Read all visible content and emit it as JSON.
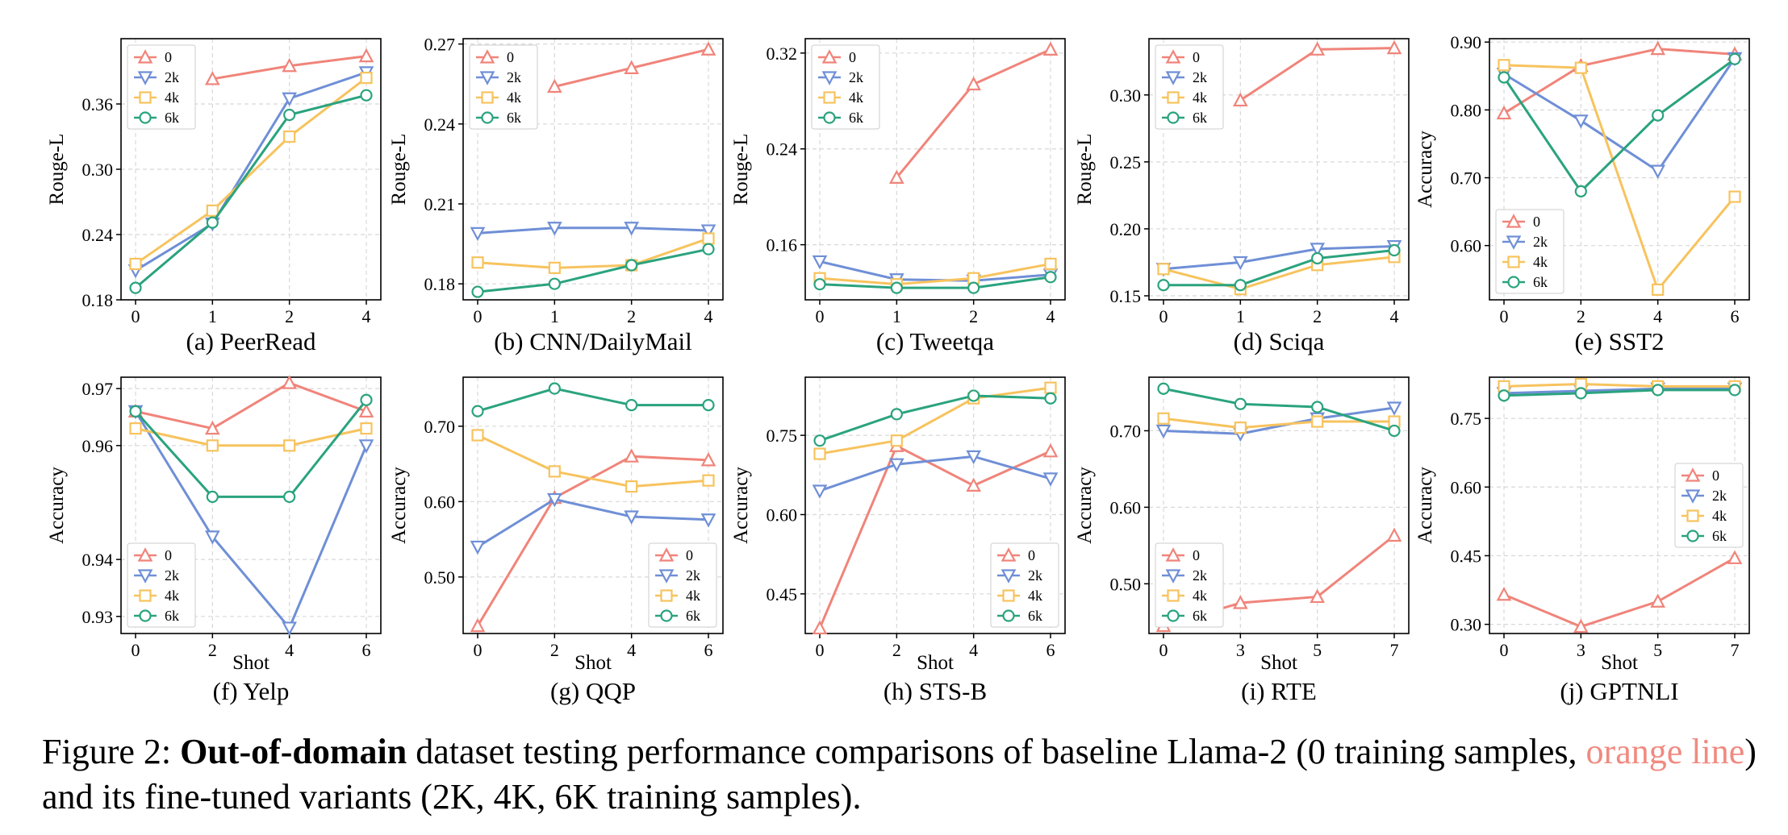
{
  "series_colors": {
    "0": "#f0847a",
    "2k": "#6f8fd6",
    "4k": "#f7c35e",
    "6k": "#2aa37e"
  },
  "series_markers": {
    "0": "triangle-up",
    "2k": "triangle-down",
    "4k": "square",
    "6k": "circle"
  },
  "chart_data": [
    {
      "type": "line",
      "title": "(a) PeerRead",
      "ylabel": "Rouge-L",
      "xlabel": "",
      "x": [
        0,
        1,
        2,
        4
      ],
      "xticks": [
        "0",
        "1",
        "2",
        "4"
      ],
      "yticks": [
        "0.18",
        "0.24",
        "0.30",
        "0.36"
      ],
      "ylim": [
        0.18,
        0.42
      ],
      "legend": "top-left",
      "series": [
        {
          "name": "0",
          "values": [
            null,
            0.383,
            0.395,
            0.404
          ]
        },
        {
          "name": "2k",
          "values": [
            0.207,
            0.25,
            0.365,
            0.389
          ]
        },
        {
          "name": "4k",
          "values": [
            0.213,
            0.262,
            0.33,
            0.384
          ]
        },
        {
          "name": "6k",
          "values": [
            0.191,
            0.251,
            0.35,
            0.368
          ]
        }
      ]
    },
    {
      "type": "line",
      "title": "(b) CNN/DailyMail",
      "ylabel": "Rouge-L",
      "xlabel": "",
      "x": [
        0,
        1,
        2,
        4
      ],
      "xticks": [
        "0",
        "1",
        "2",
        "4"
      ],
      "yticks": [
        "0.18",
        "0.21",
        "0.24",
        "0.27"
      ],
      "ylim": [
        0.174,
        0.272
      ],
      "legend": "top-left",
      "series": [
        {
          "name": "0",
          "values": [
            null,
            0.254,
            0.261,
            0.268
          ]
        },
        {
          "name": "2k",
          "values": [
            0.199,
            0.201,
            0.201,
            0.2
          ]
        },
        {
          "name": "4k",
          "values": [
            0.188,
            0.186,
            0.187,
            0.197
          ]
        },
        {
          "name": "6k",
          "values": [
            0.177,
            0.18,
            0.187,
            0.193
          ]
        }
      ]
    },
    {
      "type": "line",
      "title": "(c) Tweetqa",
      "ylabel": "Rouge-L",
      "xlabel": "",
      "x": [
        0,
        1,
        2,
        4
      ],
      "xticks": [
        "0",
        "1",
        "2",
        "4"
      ],
      "yticks": [
        "0.16",
        "0.24",
        "0.32"
      ],
      "ylim": [
        0.114,
        0.332
      ],
      "legend": "top-left",
      "series": [
        {
          "name": "0",
          "values": [
            null,
            0.216,
            0.294,
            0.323
          ]
        },
        {
          "name": "2k",
          "values": [
            0.146,
            0.131,
            0.13,
            0.135
          ]
        },
        {
          "name": "4k",
          "values": [
            0.132,
            0.127,
            0.132,
            0.144
          ]
        },
        {
          "name": "6k",
          "values": [
            0.127,
            0.124,
            0.124,
            0.133
          ]
        }
      ]
    },
    {
      "type": "line",
      "title": "(d) Sciqa",
      "ylabel": "Rouge-L",
      "xlabel": "",
      "x": [
        0,
        1,
        2,
        4
      ],
      "xticks": [
        "0",
        "1",
        "2",
        "4"
      ],
      "yticks": [
        "0.15",
        "0.20",
        "0.25",
        "0.30"
      ],
      "ylim": [
        0.147,
        0.342
      ],
      "legend": "top-left",
      "series": [
        {
          "name": "0",
          "values": [
            null,
            0.296,
            0.334,
            0.335
          ]
        },
        {
          "name": "2k",
          "values": [
            0.17,
            0.175,
            0.185,
            0.187
          ]
        },
        {
          "name": "4k",
          "values": [
            0.17,
            0.155,
            0.173,
            0.179
          ]
        },
        {
          "name": "6k",
          "values": [
            0.158,
            0.158,
            0.178,
            0.184
          ]
        }
      ]
    },
    {
      "type": "line",
      "title": "(e) SST2",
      "ylabel": "Accuracy",
      "xlabel": "",
      "x": [
        0,
        2,
        4,
        6
      ],
      "xticks": [
        "0",
        "2",
        "4",
        "6"
      ],
      "yticks": [
        "0.60",
        "0.70",
        "0.80",
        "0.90"
      ],
      "ylim": [
        0.52,
        0.905
      ],
      "legend": "bottom-left",
      "series": [
        {
          "name": "0",
          "values": [
            0.795,
            0.865,
            0.89,
            0.882
          ]
        },
        {
          "name": "2k",
          "values": [
            0.853,
            0.784,
            0.71,
            0.876
          ]
        },
        {
          "name": "4k",
          "values": [
            0.866,
            0.862,
            0.535,
            0.672
          ]
        },
        {
          "name": "6k",
          "values": [
            0.848,
            0.68,
            0.792,
            0.875
          ]
        }
      ]
    },
    {
      "type": "line",
      "title": "(f) Yelp",
      "ylabel": "Accuracy",
      "xlabel": "Shot",
      "x": [
        0,
        2,
        4,
        6
      ],
      "xticks": [
        "0",
        "2",
        "4",
        "6"
      ],
      "yticks": [
        "0.93",
        "0.94",
        "0.96",
        "0.97"
      ],
      "ylim": [
        0.927,
        0.972
      ],
      "legend": "bottom-left",
      "series": [
        {
          "name": "0",
          "values": [
            0.966,
            0.963,
            0.971,
            0.966
          ]
        },
        {
          "name": "2k",
          "values": [
            0.966,
            0.944,
            0.928,
            0.96
          ]
        },
        {
          "name": "4k",
          "values": [
            0.963,
            0.96,
            0.96,
            0.963
          ]
        },
        {
          "name": "6k",
          "values": [
            0.966,
            0.951,
            0.951,
            0.968
          ]
        }
      ]
    },
    {
      "type": "line",
      "title": "(g) QQP",
      "ylabel": "Accuracy",
      "xlabel": "Shot",
      "x": [
        0,
        2,
        4,
        6
      ],
      "xticks": [
        "0",
        "2",
        "4",
        "6"
      ],
      "yticks": [
        "0.50",
        "0.60",
        "0.70"
      ],
      "ylim": [
        0.425,
        0.765
      ],
      "legend": "bottom-right",
      "series": [
        {
          "name": "0",
          "values": [
            0.435,
            0.605,
            0.66,
            0.655
          ]
        },
        {
          "name": "2k",
          "values": [
            0.54,
            0.603,
            0.58,
            0.576
          ]
        },
        {
          "name": "4k",
          "values": [
            0.688,
            0.64,
            0.62,
            0.628
          ]
        },
        {
          "name": "6k",
          "values": [
            0.72,
            0.75,
            0.728,
            0.728
          ]
        }
      ]
    },
    {
      "type": "line",
      "title": "(h) STS-B",
      "ylabel": "Accuracy",
      "xlabel": "Shot",
      "x": [
        0,
        2,
        4,
        6
      ],
      "xticks": [
        "0",
        "2",
        "4",
        "6"
      ],
      "yticks": [
        "0.45",
        "0.60",
        "0.75"
      ],
      "ylim": [
        0.375,
        0.86
      ],
      "legend": "bottom-right",
      "series": [
        {
          "name": "0",
          "values": [
            0.385,
            0.73,
            0.655,
            0.72
          ]
        },
        {
          "name": "2k",
          "values": [
            0.645,
            0.695,
            0.71,
            0.668
          ]
        },
        {
          "name": "4k",
          "values": [
            0.715,
            0.74,
            0.82,
            0.84
          ]
        },
        {
          "name": "6k",
          "values": [
            0.74,
            0.79,
            0.825,
            0.82
          ]
        }
      ]
    },
    {
      "type": "line",
      "title": "(i) RTE",
      "ylabel": "Accuracy",
      "xlabel": "Shot",
      "x": [
        0,
        3,
        5,
        7
      ],
      "xticks": [
        "0",
        "3",
        "5",
        "7"
      ],
      "yticks": [
        "0.50",
        "0.60",
        "0.70"
      ],
      "ylim": [
        0.435,
        0.77
      ],
      "legend": "bottom-left",
      "series": [
        {
          "name": "0",
          "values": [
            0.445,
            0.475,
            0.483,
            0.563
          ]
        },
        {
          "name": "2k",
          "values": [
            0.7,
            0.696,
            0.716,
            0.73
          ]
        },
        {
          "name": "4k",
          "values": [
            0.716,
            0.704,
            0.712,
            0.712
          ]
        },
        {
          "name": "6k",
          "values": [
            0.755,
            0.735,
            0.731,
            0.7
          ]
        }
      ]
    },
    {
      "type": "line",
      "title": "(j) GPTNLI",
      "ylabel": "Accuracy",
      "xlabel": "Shot",
      "x": [
        0,
        3,
        5,
        7
      ],
      "xticks": [
        "0",
        "3",
        "5",
        "7"
      ],
      "yticks": [
        "0.30",
        "0.45",
        "0.60",
        "0.75"
      ],
      "ylim": [
        0.28,
        0.84
      ],
      "legend": "center-right",
      "series": [
        {
          "name": "0",
          "values": [
            0.365,
            0.295,
            0.35,
            0.445
          ]
        },
        {
          "name": "2k",
          "values": [
            0.805,
            0.81,
            0.815,
            0.815
          ]
        },
        {
          "name": "4k",
          "values": [
            0.82,
            0.825,
            0.82,
            0.82
          ]
        },
        {
          "name": "6k",
          "values": [
            0.8,
            0.805,
            0.812,
            0.812
          ]
        }
      ]
    }
  ],
  "caption": {
    "prefix": "Figure 2: ",
    "bold": "Out-of-domain",
    "text1": " dataset testing performance comparisons of baseline Llama-2 (0 training samples, ",
    "highlight": "orange line",
    "text2": ") and its fine-tuned variants (2K, 4K, 6K training samples)."
  }
}
